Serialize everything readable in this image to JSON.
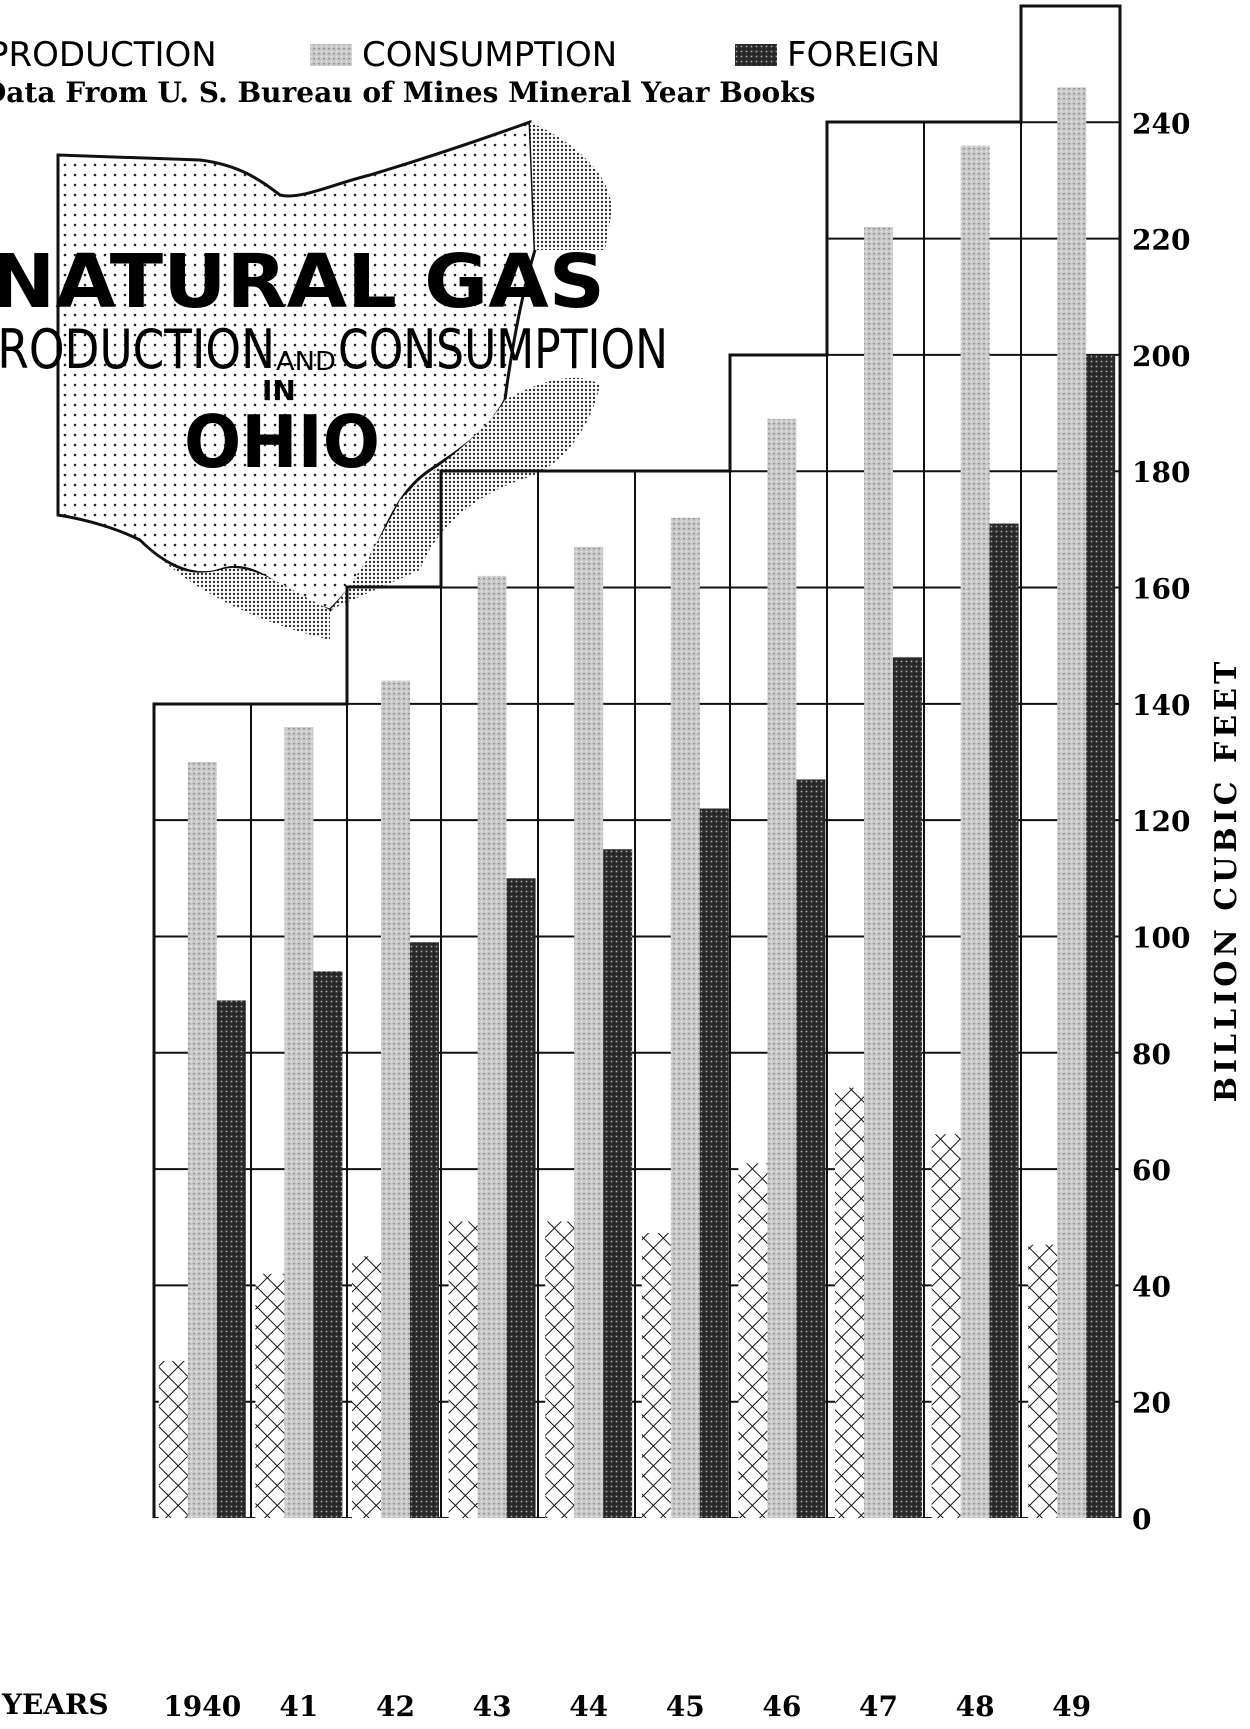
{
  "chart_data": {
    "type": "bar",
    "title": [
      "NATURAL GAS",
      "PRODUCTION",
      "AND",
      "CONSUMPTION",
      "IN",
      "OHIO"
    ],
    "source": "Data From U. S. Bureau of Mines Mineral Year Books",
    "x_label": "YEARS",
    "y_label": "BILLION CUBIC FEET",
    "categories": [
      "1940",
      "41",
      "42",
      "43",
      "44",
      "45",
      "46",
      "47",
      "48",
      "49"
    ],
    "series": [
      {
        "name": "PRODUCTION",
        "color": "#ffffff",
        "values": [
          27,
          42,
          45,
          51,
          51,
          49,
          61,
          74,
          66,
          47
        ]
      },
      {
        "name": "CONSUMPTION",
        "color": "#c8c8c8",
        "values": [
          130,
          136,
          144,
          162,
          167,
          172,
          189,
          222,
          236,
          246
        ]
      },
      {
        "name": "FOREIGN",
        "color": "#2b2b2b",
        "values": [
          89,
          94,
          99,
          110,
          115,
          122,
          127,
          148,
          171,
          200
        ]
      }
    ],
    "ylim": [
      0,
      260
    ],
    "yticks": [
      0,
      20,
      40,
      60,
      80,
      100,
      120,
      140,
      160,
      180,
      200,
      220,
      240
    ],
    "grid": true,
    "legend": "top"
  }
}
